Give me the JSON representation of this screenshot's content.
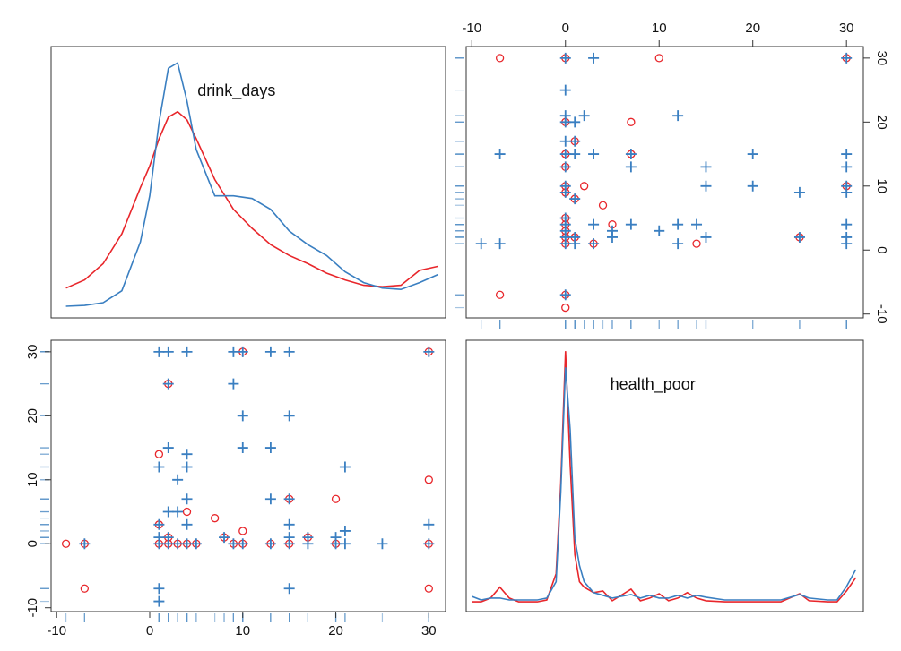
{
  "chart_data": {
    "type": "scatter-matrix",
    "density_ylim": [
      0,
      1
    ],
    "variables": [
      {
        "name": "drink_days",
        "lim": [
          -10.6,
          31.8
        ],
        "ticks": [
          -10,
          0,
          10,
          20,
          30
        ],
        "density_grid": [
          -9,
          -7,
          -5,
          -3,
          -1,
          0,
          1,
          2,
          3,
          4,
          5,
          7,
          9,
          11,
          13,
          15,
          17,
          19,
          21,
          23,
          25,
          27,
          29,
          31
        ]
      },
      {
        "name": "health_poor",
        "lim": [
          -10.6,
          31.8
        ],
        "ticks": [
          -10,
          0,
          10,
          20,
          30
        ],
        "density_grid": [
          -10,
          -9,
          -8,
          -7,
          -6,
          -5,
          -3,
          -2,
          -1,
          -0.5,
          0,
          0.5,
          1,
          1.5,
          2,
          3,
          4,
          5,
          7,
          8,
          9,
          10,
          11,
          12,
          13,
          14,
          15,
          17,
          20,
          23,
          25,
          26,
          28,
          29,
          30,
          31
        ]
      }
    ],
    "series": [
      {
        "color": "#e8262b",
        "marker": "circle",
        "x": [
          -9,
          -7,
          -7,
          1,
          1,
          1,
          2,
          2,
          2,
          3,
          4,
          4,
          5,
          7,
          8,
          9,
          10,
          10,
          10,
          13,
          15,
          15,
          17,
          20,
          20,
          30,
          30,
          30,
          30
        ],
        "y": [
          0,
          0,
          -7,
          14,
          3,
          0,
          25,
          1,
          0,
          0,
          5,
          0,
          0,
          4,
          1,
          0,
          30,
          2,
          0,
          0,
          7,
          0,
          1,
          7,
          0,
          30,
          10,
          0,
          -7
        ],
        "density": [
          [
            0.11,
            0.14,
            0.2,
            0.31,
            0.48,
            0.56,
            0.66,
            0.74,
            0.76,
            0.73,
            0.66,
            0.51,
            0.4,
            0.33,
            0.27,
            0.23,
            0.2,
            0.165,
            0.14,
            0.12,
            0.115,
            0.12,
            0.175,
            0.19
          ],
          [
            0.036,
            0.036,
            0.05,
            0.09,
            0.05,
            0.036,
            0.036,
            0.043,
            0.14,
            0.47,
            0.96,
            0.54,
            0.21,
            0.11,
            0.09,
            0.07,
            0.076,
            0.04,
            0.083,
            0.04,
            0.05,
            0.066,
            0.04,
            0.05,
            0.07,
            0.05,
            0.04,
            0.036,
            0.036,
            0.036,
            0.066,
            0.04,
            0.036,
            0.036,
            0.076,
            0.125
          ]
        ]
      },
      {
        "color": "#3a7fc1",
        "marker": "plus",
        "x": [
          1,
          2,
          4,
          9,
          10,
          13,
          15,
          30,
          9,
          2,
          10,
          15,
          2,
          4,
          10,
          13,
          1,
          4,
          21,
          3,
          4,
          13,
          15,
          2,
          3,
          4,
          1,
          15,
          30,
          1,
          2,
          8,
          17,
          20,
          21,
          15,
          1,
          2,
          3,
          4,
          5,
          9,
          10,
          13,
          15,
          17,
          20,
          21,
          25,
          30,
          1,
          15,
          1,
          -7
        ],
        "y": [
          30,
          30,
          30,
          30,
          30,
          30,
          30,
          30,
          25,
          25,
          20,
          20,
          15,
          14,
          15,
          15,
          12,
          12,
          12,
          10,
          7,
          7,
          7,
          5,
          5,
          3,
          3,
          3,
          3,
          1,
          1,
          1,
          1,
          1,
          2,
          1,
          0,
          0,
          0,
          0,
          0,
          0,
          0,
          0,
          0,
          0,
          0,
          0,
          0,
          0,
          -7,
          -7,
          -9,
          0
        ],
        "density": [
          [
            0.043,
            0.046,
            0.056,
            0.1,
            0.28,
            0.45,
            0.72,
            0.92,
            0.94,
            0.8,
            0.62,
            0.45,
            0.45,
            0.44,
            0.4,
            0.32,
            0.27,
            0.23,
            0.17,
            0.13,
            0.11,
            0.105,
            0.13,
            0.16
          ],
          [
            0.056,
            0.043,
            0.05,
            0.05,
            0.043,
            0.043,
            0.043,
            0.05,
            0.11,
            0.44,
            0.9,
            0.67,
            0.27,
            0.17,
            0.11,
            0.07,
            0.06,
            0.05,
            0.063,
            0.05,
            0.06,
            0.05,
            0.05,
            0.06,
            0.05,
            0.06,
            0.053,
            0.043,
            0.043,
            0.043,
            0.063,
            0.05,
            0.043,
            0.043,
            0.092,
            0.155
          ]
        ]
      }
    ]
  }
}
